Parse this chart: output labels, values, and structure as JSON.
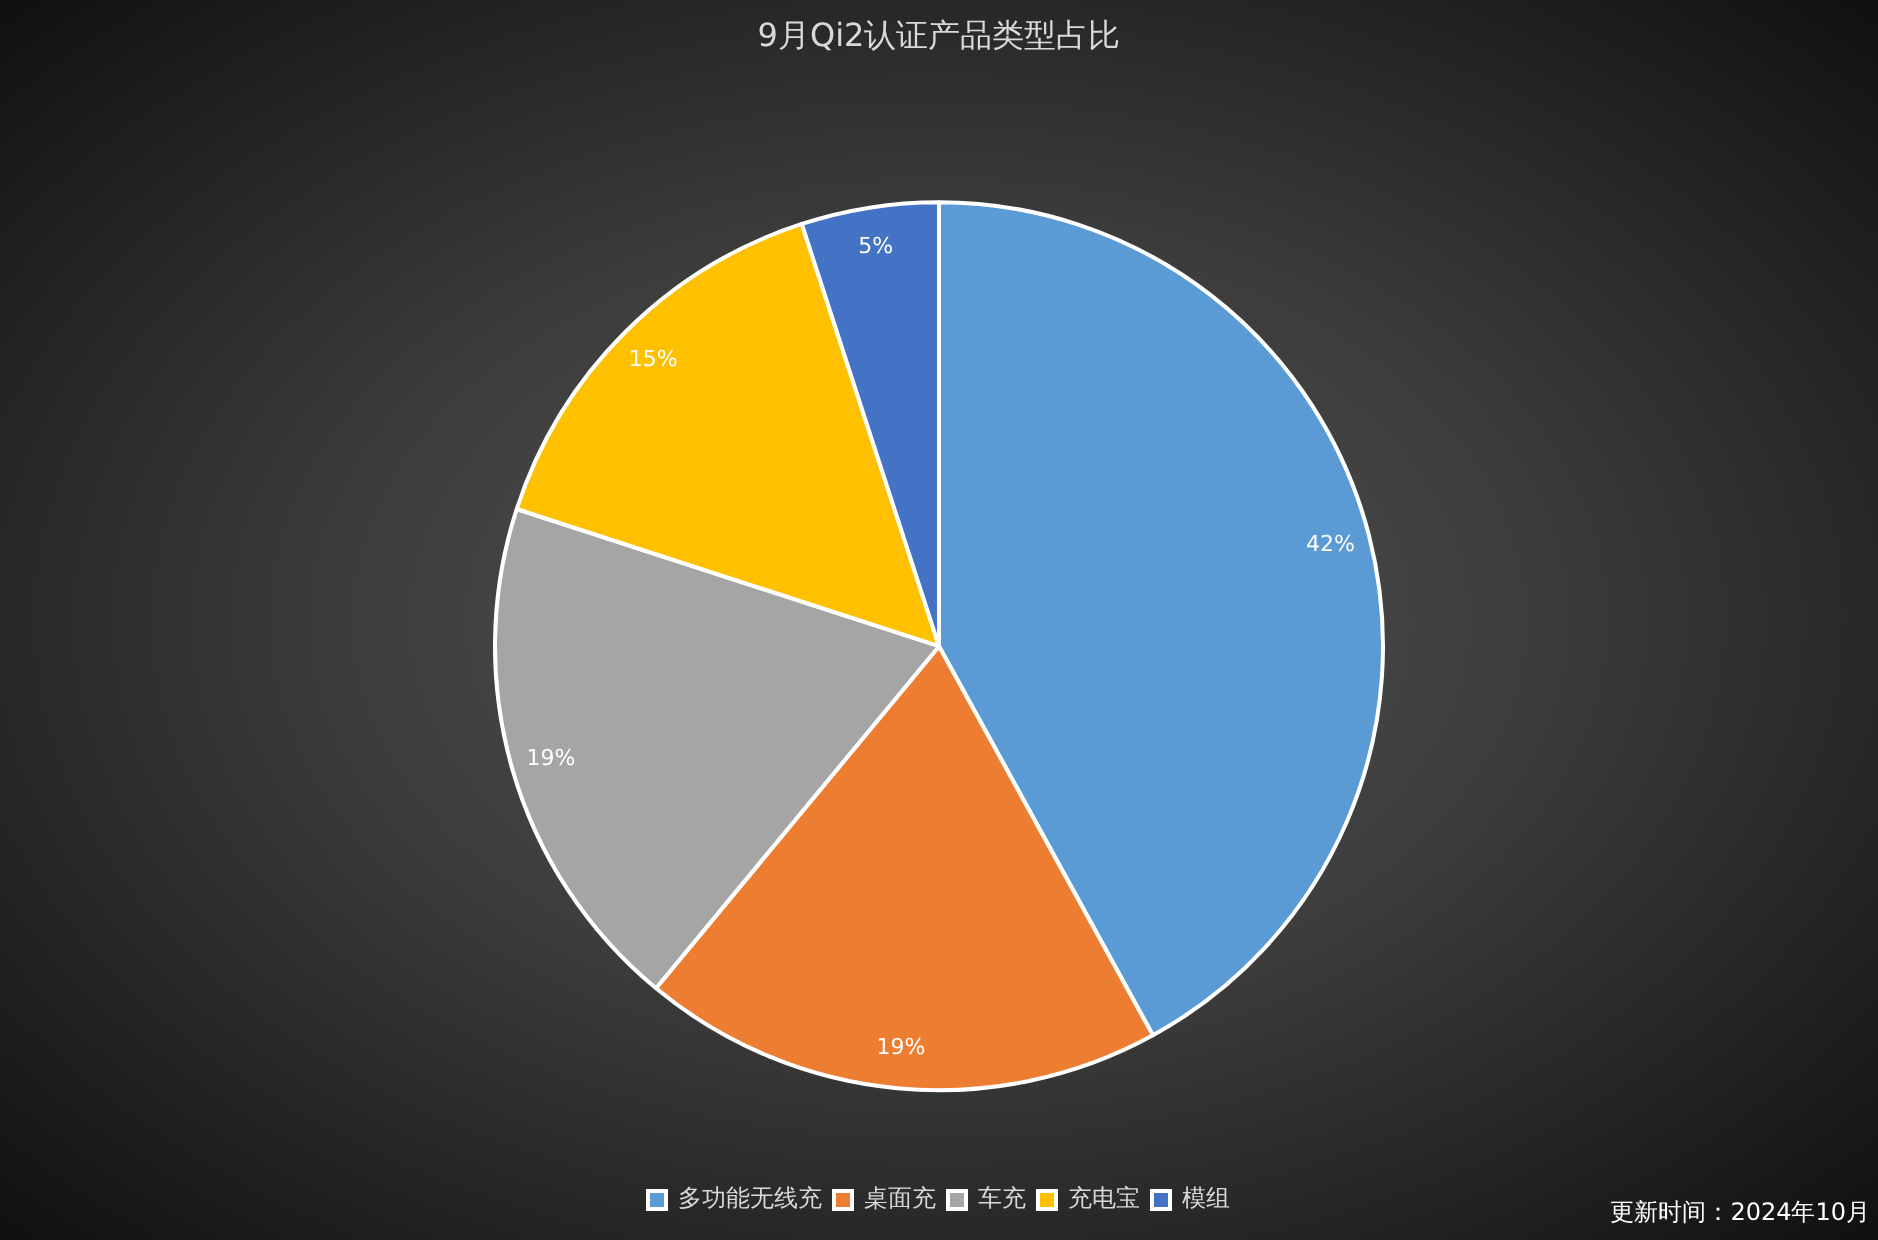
{
  "chart_data": {
    "type": "pie",
    "title": "9月Qi2认证产品类型占比",
    "categories": [
      "多功能无线充",
      "桌面充",
      "车充",
      "充电宝",
      "模组"
    ],
    "values": [
      42,
      19,
      19,
      15,
      5
    ],
    "colors": [
      "#5b9bd5",
      "#ed7d31",
      "#a5a5a5",
      "#ffc000",
      "#4472c4"
    ],
    "value_labels": [
      "42%",
      "19%",
      "19%",
      "15%",
      "5%"
    ],
    "legend": "bottom",
    "annotations": [
      "更新时间：2024年10月"
    ]
  }
}
